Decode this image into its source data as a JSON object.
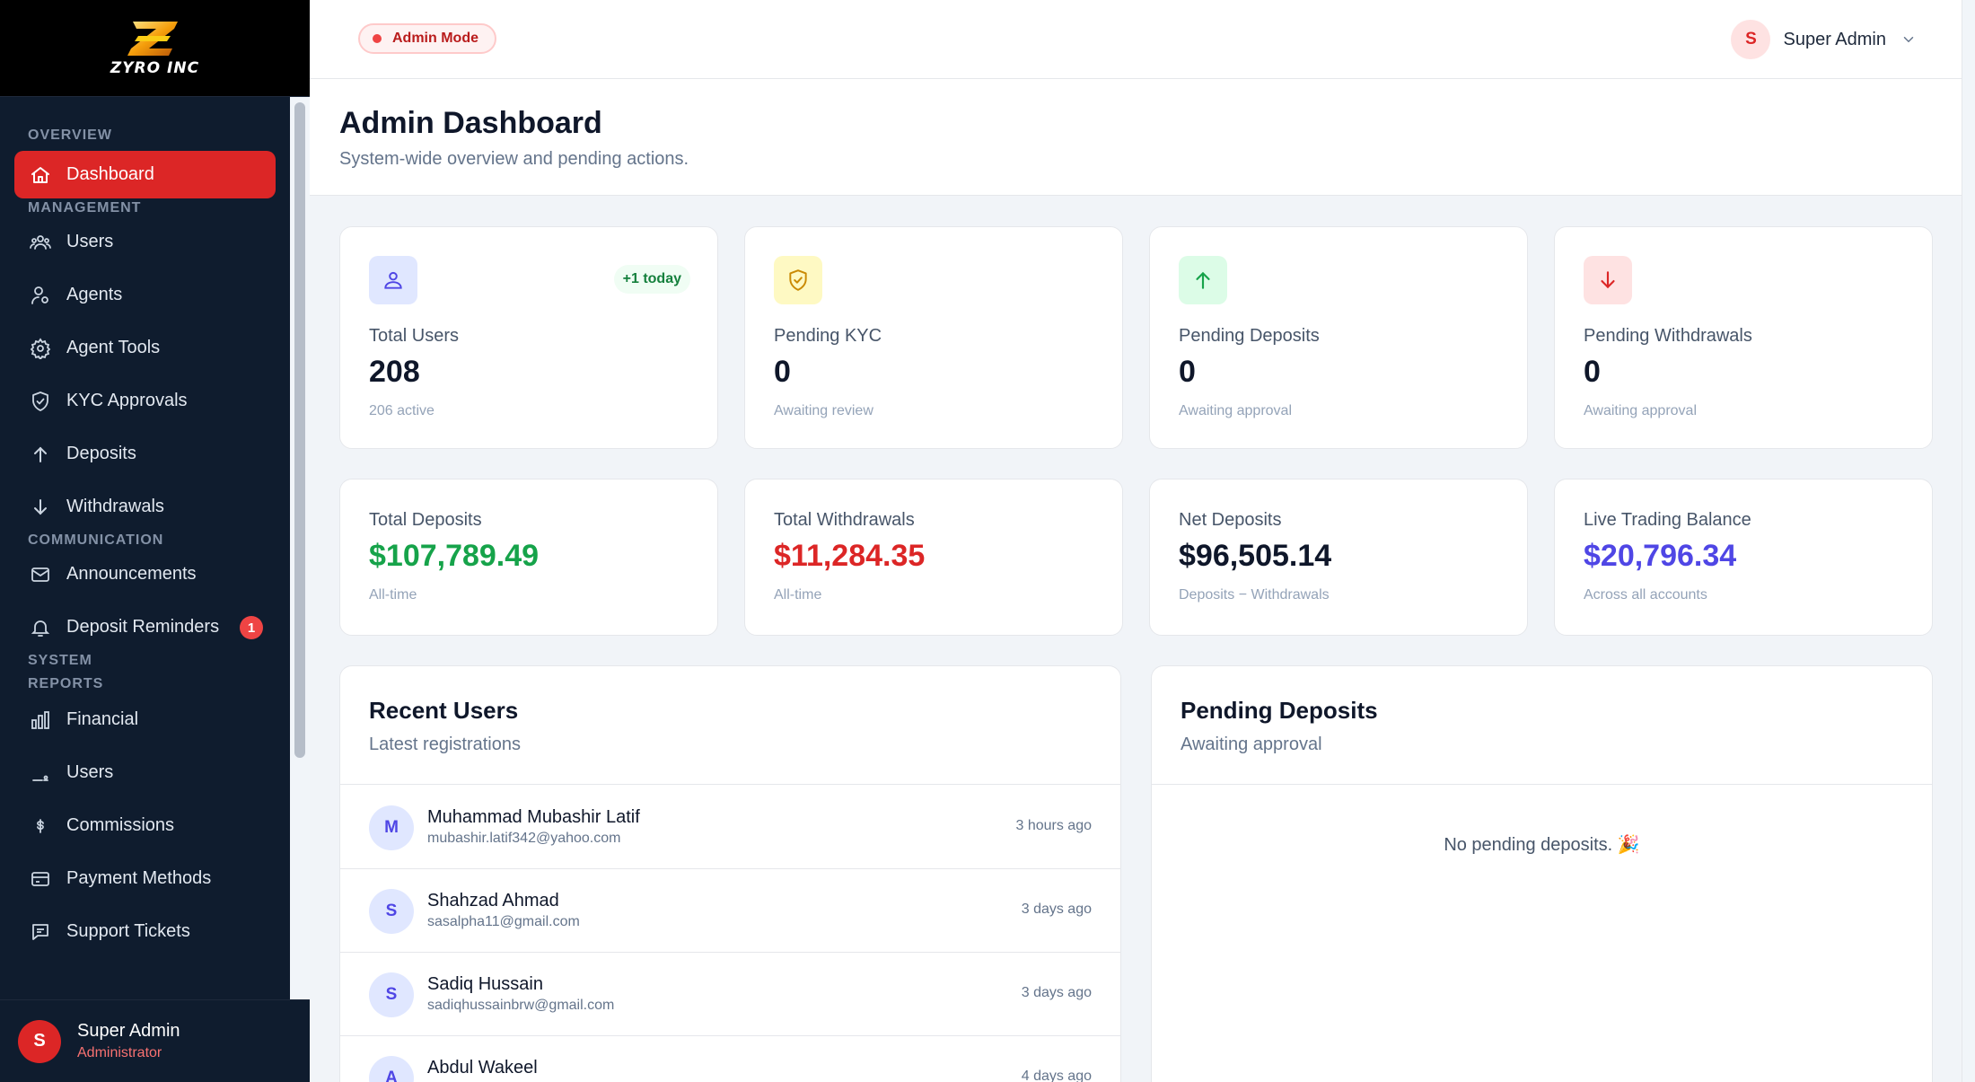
{
  "brand": {
    "name": "ZYRO INC"
  },
  "topbar": {
    "mode_label": "Admin Mode",
    "user_initial": "S",
    "user_name": "Super Admin"
  },
  "header": {
    "title": "Admin Dashboard",
    "subtitle": "System-wide overview and pending actions."
  },
  "sidebar": {
    "sections": {
      "overview": "OVERVIEW",
      "management": "MANAGEMENT",
      "communication": "COMMUNICATION",
      "system": "SYSTEM",
      "reports": "REPORTS"
    },
    "items": [
      {
        "label": "Dashboard",
        "icon": "home-icon"
      },
      {
        "label": "Users",
        "icon": "users-icon"
      },
      {
        "label": "Agents",
        "icon": "agent-icon"
      },
      {
        "label": "Agent Tools",
        "icon": "gear-icon"
      },
      {
        "label": "KYC Approvals",
        "icon": "shield-icon"
      },
      {
        "label": "Deposits",
        "icon": "arrow-up-icon"
      },
      {
        "label": "Withdrawals",
        "icon": "arrow-down-icon"
      },
      {
        "label": "Announcements",
        "icon": "mail-icon"
      },
      {
        "label": "Deposit Reminders",
        "icon": "bell-icon",
        "badge": "1"
      },
      {
        "label": "Financial",
        "icon": "bar-chart-icon"
      },
      {
        "label": "Users",
        "icon": "user-report-icon"
      },
      {
        "label": "Commissions",
        "icon": "dollar-icon"
      },
      {
        "label": "Payment Methods",
        "icon": "credit-card-icon"
      },
      {
        "label": "Support Tickets",
        "icon": "chat-icon"
      }
    ],
    "user": {
      "initial": "S",
      "name": "Super Admin",
      "role": "Administrator"
    }
  },
  "stats": [
    {
      "label": "Total Users",
      "value": "208",
      "note": "206 active",
      "badge": "+1 today",
      "icon": "user-icon",
      "accent": "#e0e7ff"
    },
    {
      "label": "Pending KYC",
      "value": "0",
      "note": "Awaiting review",
      "icon": "shield-icon",
      "accent": "#fef9c3"
    },
    {
      "label": "Pending Deposits",
      "value": "0",
      "note": "Awaiting approval",
      "icon": "arrow-up-icon",
      "accent": "#dcfce7"
    },
    {
      "label": "Pending Withdrawals",
      "value": "0",
      "note": "Awaiting approval",
      "icon": "arrow-down-icon",
      "accent": "#fee2e2"
    }
  ],
  "financials": [
    {
      "label": "Total Deposits",
      "value": "$107,789.49",
      "note": "All-time",
      "color": "#16a34a"
    },
    {
      "label": "Total Withdrawals",
      "value": "$11,284.35",
      "note": "All-time",
      "color": "#dc2626"
    },
    {
      "label": "Net Deposits",
      "value": "$96,505.14",
      "note": "Deposits − Withdrawals",
      "color": "#0f172a"
    },
    {
      "label": "Live Trading Balance",
      "value": "$20,796.34",
      "note": "Across all accounts",
      "color": "#4f46e5"
    }
  ],
  "recent_users": {
    "title": "Recent Users",
    "subtitle": "Latest registrations",
    "rows": [
      {
        "initial": "M",
        "name": "Muhammad Mubashir Latif",
        "email": "mubashir.latif342@yahoo.com",
        "time": "3 hours ago"
      },
      {
        "initial": "S",
        "name": "Shahzad Ahmad",
        "email": "sasalpha11@gmail.com",
        "time": "3 days ago"
      },
      {
        "initial": "S",
        "name": "Sadiq Hussain",
        "email": "sadiqhussainbrw@gmail.com",
        "time": "3 days ago"
      },
      {
        "initial": "A",
        "name": "Abdul Wakeel",
        "email": "",
        "time": "4 days ago"
      }
    ]
  },
  "pending_deposits": {
    "title": "Pending Deposits",
    "subtitle": "Awaiting approval",
    "empty_text": "No pending deposits. 🎉"
  }
}
